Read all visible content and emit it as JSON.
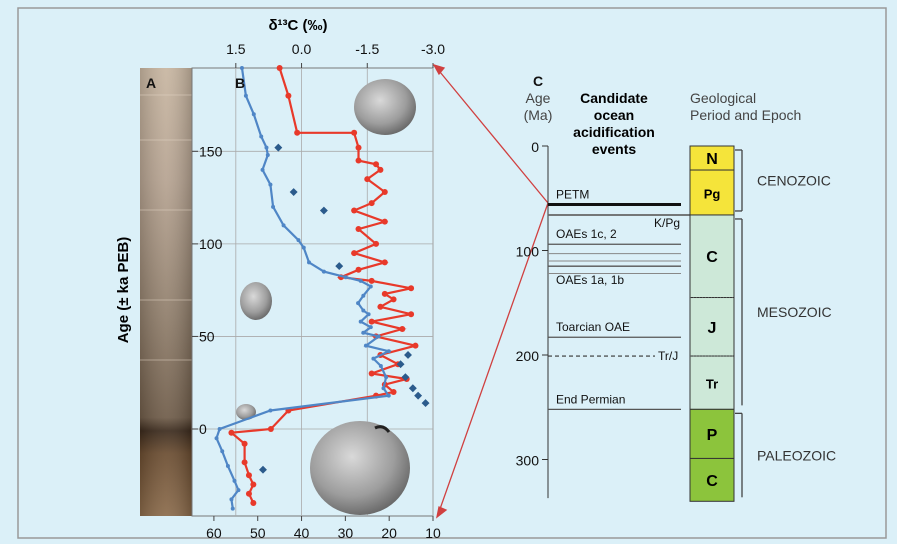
{
  "colors": {
    "background": "#dbf0f8",
    "frame": "#999999",
    "red_series": "#e8392a",
    "blue_series": "#4f86c6",
    "blue_points": "#2b5b8c",
    "neogene_paleogene": "#f5e43a",
    "mesozoic": "#cde8d8",
    "paleozoic": "#8cc43c",
    "arrows": "#d04040"
  },
  "panel_a": {
    "label": "A"
  },
  "panel_b": {
    "label": "B",
    "top_axis_title": "δ¹³C (‰)",
    "top_ticks": [
      "1.5",
      "0.0",
      "-1.5",
      "-3.0"
    ],
    "left_axis_title": "Age (± ka PEB)",
    "left_ticks": [
      "150",
      "100",
      "50",
      "0"
    ],
    "bottom_ticks": [
      "60",
      "50",
      "40",
      "30",
      "20",
      "10"
    ]
  },
  "panel_c": {
    "label": "C",
    "age_header": "Age",
    "age_unit": "(Ma)",
    "events_header": [
      "Candidate",
      "ocean",
      "acidification",
      "events"
    ],
    "period_header": [
      "Geological",
      "Period and Epoch"
    ],
    "age_ticks": [
      "0",
      "100",
      "200",
      "300"
    ],
    "events": [
      {
        "name": "PETM",
        "age_ma": 56
      },
      {
        "name": "OAEs 1c, 2",
        "age_ma": 94
      },
      {
        "name": "OAEs 1a, 1b",
        "age_ma": 115
      },
      {
        "name": "Toarcian OAE",
        "age_ma": 183
      },
      {
        "name": "End Permian",
        "age_ma": 252
      }
    ],
    "boundaries": [
      {
        "name": "K/Pg",
        "age_ma": 66
      },
      {
        "name": "Tr/J",
        "age_ma": 201
      }
    ],
    "periods": [
      {
        "label": "N",
        "from_ma": 0,
        "to_ma": 23,
        "color": "#f5e43a"
      },
      {
        "label": "Pg",
        "from_ma": 23,
        "to_ma": 66,
        "color": "#f5e43a"
      },
      {
        "label": "C",
        "from_ma": 66,
        "to_ma": 145,
        "color": "#cde8d8"
      },
      {
        "label": "J",
        "from_ma": 145,
        "to_ma": 201,
        "color": "#cde8d8"
      },
      {
        "label": "Tr",
        "from_ma": 201,
        "to_ma": 252,
        "color": "#cde8d8"
      },
      {
        "label": "P",
        "from_ma": 252,
        "to_ma": 299,
        "color": "#8cc43c"
      },
      {
        "label": "C",
        "from_ma": 299,
        "to_ma": 340,
        "color": "#8cc43c"
      }
    ],
    "eras": [
      {
        "name": "CENOZOIC",
        "from_ma": 0,
        "to_ma": 66
      },
      {
        "name": "MESOZOIC",
        "from_ma": 66,
        "to_ma": 252
      },
      {
        "name": "PALEOZOIC",
        "from_ma": 252,
        "to_ma": 340
      }
    ]
  },
  "chart_data": [
    {
      "type": "line",
      "panel": "B",
      "title": "",
      "x_top_label": "δ¹³C (‰)",
      "x_top_range": [
        2.5,
        -3.0
      ],
      "x_bottom_range": [
        65,
        10
      ],
      "y_label": "Age (± ka PEB)",
      "y_range": [
        -47,
        195
      ],
      "series": [
        {
          "axis": "top",
          "color": "#e8392a",
          "points": [
            [
              0.5,
              195
            ],
            [
              0.3,
              180
            ],
            [
              0.1,
              160
            ],
            [
              -1.2,
              160
            ],
            [
              -1.3,
              152
            ],
            [
              -1.3,
              145
            ],
            [
              -1.7,
              143
            ],
            [
              -1.8,
              140
            ],
            [
              -1.5,
              135
            ],
            [
              -1.9,
              128
            ],
            [
              -1.6,
              122
            ],
            [
              -1.2,
              118
            ],
            [
              -1.9,
              112
            ],
            [
              -1.3,
              108
            ],
            [
              -1.7,
              100
            ],
            [
              -1.2,
              95
            ],
            [
              -1.9,
              90
            ],
            [
              -1.3,
              86
            ],
            [
              -0.9,
              82
            ],
            [
              -1.6,
              80
            ],
            [
              -2.5,
              76
            ],
            [
              -1.9,
              73
            ],
            [
              -2.1,
              70
            ],
            [
              -1.8,
              66
            ],
            [
              -2.5,
              62
            ],
            [
              -1.6,
              58
            ],
            [
              -2.3,
              54
            ],
            [
              -1.7,
              50
            ],
            [
              -2.6,
              45
            ],
            [
              -1.8,
              40
            ],
            [
              -2.2,
              35
            ],
            [
              -1.6,
              30
            ],
            [
              -2.4,
              27
            ],
            [
              -1.9,
              24
            ],
            [
              -2.1,
              20
            ],
            [
              -1.7,
              18
            ],
            [
              0.3,
              10
            ],
            [
              0.7,
              0
            ],
            [
              1.6,
              -2
            ],
            [
              1.3,
              -8
            ],
            [
              1.3,
              -18
            ],
            [
              1.2,
              -25
            ],
            [
              1.1,
              -30
            ],
            [
              1.2,
              -35
            ],
            [
              1.1,
              -40
            ]
          ]
        },
        {
          "axis": "bottom",
          "color": "#4f86c6",
          "points": [
            [
              53.6,
              195
            ],
            [
              52.7,
              180
            ],
            [
              50.9,
              170
            ],
            [
              49.2,
              158
            ],
            [
              48,
              152
            ],
            [
              47.7,
              148
            ],
            [
              48.9,
              140
            ],
            [
              47.1,
              132
            ],
            [
              46.5,
              120
            ],
            [
              44.1,
              110
            ],
            [
              40.7,
              102
            ],
            [
              39.5,
              98
            ],
            [
              38.3,
              90
            ],
            [
              34.9,
              85
            ],
            [
              29.9,
              82
            ],
            [
              26.5,
              80
            ],
            [
              24.2,
              77
            ],
            [
              25.9,
              72
            ],
            [
              27.1,
              68
            ],
            [
              25.9,
              64
            ],
            [
              24.7,
              62
            ],
            [
              26.5,
              58
            ],
            [
              24.2,
              55
            ],
            [
              25.9,
              52
            ],
            [
              22.4,
              50
            ],
            [
              25.3,
              45
            ],
            [
              20.1,
              42
            ],
            [
              23.6,
              38
            ],
            [
              21.9,
              34
            ],
            [
              20.7,
              28
            ],
            [
              21.3,
              22
            ],
            [
              20.1,
              18
            ],
            [
              47.1,
              10
            ],
            [
              58.7,
              0
            ],
            [
              59.4,
              -5
            ],
            [
              58.1,
              -12
            ],
            [
              56.8,
              -20
            ],
            [
              55.3,
              -28
            ],
            [
              54.4,
              -33
            ],
            [
              56,
              -38
            ],
            [
              55.7,
              -43
            ]
          ]
        },
        {
          "axis": "bottom",
          "color": "#2b5b8c",
          "marker_only": true,
          "points": [
            [
              45.3,
              152
            ],
            [
              41.8,
              128
            ],
            [
              34.9,
              118
            ],
            [
              31.4,
              88
            ],
            [
              15.7,
              40
            ],
            [
              17.4,
              35
            ],
            [
              16.3,
              28
            ],
            [
              14.6,
              22
            ],
            [
              13.4,
              18
            ],
            [
              11.7,
              14
            ],
            [
              48.8,
              -22
            ]
          ]
        }
      ]
    },
    {
      "type": "timeline",
      "panel": "C",
      "y_label": "Age (Ma)",
      "y_range": [
        0,
        340
      ],
      "y_ticks": [
        0,
        100,
        200,
        300
      ],
      "events": [
        "PETM",
        "OAEs 1c, 2",
        "OAEs 1a, 1b",
        "Toarcian OAE",
        "End Permian"
      ]
    }
  ]
}
